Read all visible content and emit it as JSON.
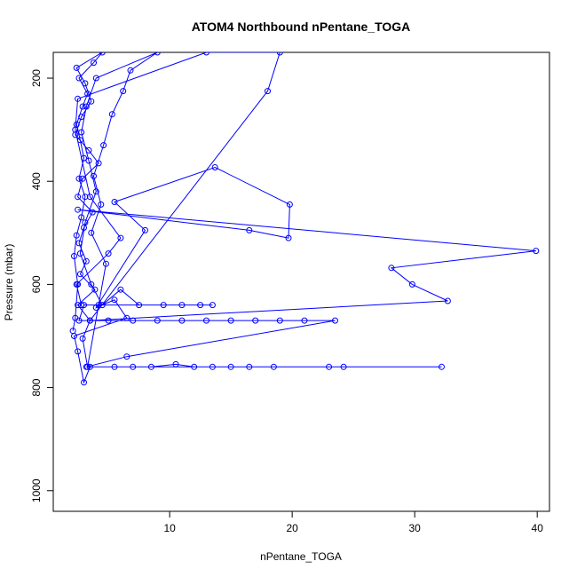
{
  "chart_data": {
    "type": "line",
    "title": "ATOM4 Northbound nPentane_TOGA",
    "xlabel": "nPentane_TOGA",
    "ylabel": "Pressure (mbar)",
    "xlim": [
      0.5,
      41
    ],
    "ylim": [
      1040,
      150
    ],
    "y_reversed": true,
    "x_ticks": [
      10,
      20,
      30,
      40
    ],
    "y_ticks": [
      200,
      400,
      600,
      800,
      1000
    ],
    "grid": false,
    "legend": "none",
    "marker": "open-circle",
    "color": "#0000ff",
    "series": [
      {
        "values": [
          [
            2.1,
            690
          ],
          [
            2.3,
            665
          ],
          [
            2.5,
            600
          ],
          [
            2.2,
            545
          ],
          [
            2.4,
            505
          ],
          [
            2.8,
            470
          ],
          [
            3.1,
            430
          ],
          [
            2.6,
            395
          ],
          [
            3.0,
            355
          ],
          [
            2.7,
            320
          ],
          [
            2.4,
            290
          ],
          [
            2.9,
            255
          ],
          [
            3.3,
            230
          ],
          [
            2.6,
            200
          ],
          [
            3.8,
            170
          ],
          [
            4.5,
            150
          ],
          [
            2.4,
            180
          ],
          [
            3.1,
            210
          ],
          [
            3.6,
            245
          ],
          [
            2.8,
            275
          ],
          [
            2.3,
            310
          ],
          [
            3.4,
            340
          ],
          [
            4.2,
            365
          ],
          [
            2.9,
            395
          ],
          [
            2.5,
            430
          ],
          [
            3.7,
            460
          ],
          [
            3.0,
            490
          ],
          [
            2.6,
            520
          ],
          [
            3.2,
            555
          ],
          [
            2.7,
            580
          ],
          [
            3.9,
            610
          ],
          [
            2.5,
            640
          ],
          [
            3.5,
            670
          ],
          [
            2.9,
            705
          ],
          [
            3.3,
            760
          ],
          [
            4.2,
            640
          ],
          [
            4.8,
            560
          ],
          [
            3.6,
            500
          ],
          [
            4.4,
            445
          ],
          [
            3.8,
            390
          ],
          [
            4.6,
            330
          ],
          [
            5.3,
            270
          ],
          [
            6.2,
            225
          ],
          [
            6.8,
            185
          ],
          [
            9.0,
            150
          ],
          [
            4.0,
            200
          ],
          [
            3.2,
            255
          ],
          [
            2.8,
            305
          ],
          [
            3.4,
            360
          ],
          [
            4.0,
            420
          ],
          [
            3.1,
            480
          ],
          [
            2.7,
            540
          ],
          [
            3.6,
            600
          ],
          [
            4.5,
            640
          ],
          [
            6.0,
            610
          ],
          [
            7.5,
            640
          ],
          [
            9.5,
            640
          ],
          [
            11.0,
            640
          ],
          [
            12.5,
            640
          ],
          [
            13.5,
            640
          ],
          [
            3.0,
            640
          ],
          [
            2.6,
            670
          ],
          [
            5.0,
            670
          ],
          [
            7.0,
            670
          ],
          [
            9.0,
            670
          ],
          [
            11.0,
            670
          ],
          [
            13.0,
            670
          ],
          [
            15.0,
            670
          ],
          [
            17.0,
            670
          ],
          [
            19.0,
            670
          ],
          [
            21.0,
            670
          ],
          [
            23.5,
            670
          ],
          [
            6.5,
            740
          ],
          [
            3.2,
            760
          ],
          [
            5.5,
            760
          ],
          [
            7.0,
            760
          ],
          [
            8.5,
            760
          ],
          [
            10.5,
            755
          ],
          [
            12.0,
            760
          ],
          [
            13.5,
            760
          ],
          [
            15.0,
            760
          ],
          [
            16.5,
            760
          ],
          [
            18.5,
            760
          ],
          [
            23.0,
            760
          ],
          [
            24.2,
            760
          ],
          [
            32.2,
            760
          ],
          [
            3.5,
            760
          ],
          [
            3.0,
            790
          ],
          [
            2.5,
            730
          ],
          [
            2.2,
            700
          ],
          [
            6.5,
            665
          ],
          [
            5.5,
            630
          ],
          [
            4.0,
            645
          ],
          [
            8.0,
            495
          ],
          [
            5.5,
            440
          ],
          [
            13.7,
            373
          ],
          [
            19.8,
            445
          ],
          [
            19.7,
            510
          ],
          [
            16.5,
            495
          ],
          [
            2.5,
            455
          ],
          [
            39.9,
            535
          ],
          [
            28.1,
            568
          ],
          [
            29.8,
            600
          ],
          [
            32.7,
            632
          ],
          [
            3.5,
            670
          ],
          [
            18.0,
            225
          ],
          [
            19.0,
            150
          ],
          [
            13.0,
            150
          ],
          [
            2.5,
            240
          ],
          [
            2.3,
            300
          ],
          [
            3.5,
            430
          ],
          [
            6.0,
            510
          ],
          [
            5.0,
            540
          ],
          [
            2.4,
            600
          ],
          [
            2.8,
            640
          ]
        ]
      }
    ]
  }
}
